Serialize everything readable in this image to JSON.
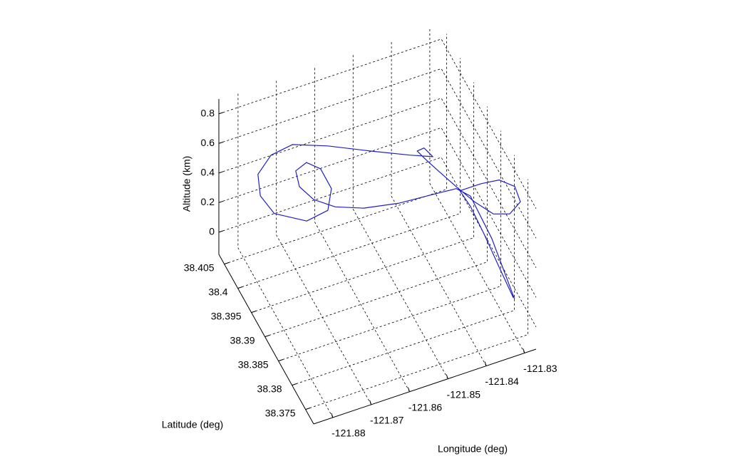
{
  "chart_data": {
    "type": "line3d",
    "xlabel": "Longitude   (deg)",
    "ylabel": "Latitude   (deg)",
    "zlabel": "Altitude   (km)",
    "color": "#1f1fc8",
    "grid": true,
    "xlim": [
      -121.885,
      -121.827
    ],
    "ylim": [
      38.372,
      38.407
    ],
    "zlim": [
      -0.15,
      0.9
    ],
    "xticks": [
      -121.88,
      -121.87,
      -121.86,
      -121.85,
      -121.84,
      -121.83
    ],
    "yticks": [
      38.375,
      38.38,
      38.385,
      38.39,
      38.395,
      38.4,
      38.405
    ],
    "zticks": [
      0,
      0.2,
      0.4,
      0.6,
      0.8
    ],
    "x": [
      -121.8284,
      -121.8314,
      -121.8343,
      -121.8366,
      -121.8379,
      -121.8333,
      -121.8298,
      -121.8286,
      -121.8296,
      -121.8316,
      -121.8334,
      -121.8352,
      -121.8364,
      -121.8384,
      -121.8408,
      -121.8424,
      -121.8409,
      -121.8393,
      -121.8445,
      -121.8526,
      -121.8614,
      -121.869,
      -121.8741,
      -121.8775,
      -121.8787,
      -121.8769,
      -121.8698,
      -121.8642,
      -121.8613,
      -121.8618,
      -121.8645,
      -121.8675,
      -121.8681,
      -121.866,
      -121.8618,
      -121.8557,
      -121.8473,
      -121.8387,
      -121.8339,
      -121.8317,
      -121.8295,
      -121.8283
    ],
    "y": [
      38.3784,
      38.3794,
      38.3807,
      38.3826,
      38.3847,
      38.3834,
      38.3817,
      38.3776,
      38.3741,
      38.3752,
      38.3787,
      38.3833,
      38.3882,
      38.392,
      38.3937,
      38.3941,
      38.3937,
      38.3927,
      38.3938,
      38.3968,
      38.4002,
      38.4025,
      38.4032,
      38.4032,
      38.4006,
      38.398,
      38.3961,
      38.3962,
      38.399,
      38.4023,
      38.4037,
      38.4034,
      38.4012,
      38.3989,
      38.3969,
      38.395,
      38.3938,
      38.3928,
      38.3917,
      38.3896,
      38.3848,
      38.3781
    ],
    "z": [
      0.0,
      0.2,
      0.4,
      0.55,
      0.6,
      0.65,
      0.7,
      0.78,
      0.8,
      0.7,
      0.6,
      0.55,
      0.5,
      0.5,
      0.55,
      0.6,
      0.62,
      0.58,
      0.6,
      0.6,
      0.6,
      0.6,
      0.55,
      0.45,
      0.4,
      0.35,
      0.3,
      0.32,
      0.35,
      0.38,
      0.4,
      0.38,
      0.35,
      0.32,
      0.3,
      0.3,
      0.3,
      0.32,
      0.35,
      0.35,
      0.2,
      0.0
    ]
  }
}
